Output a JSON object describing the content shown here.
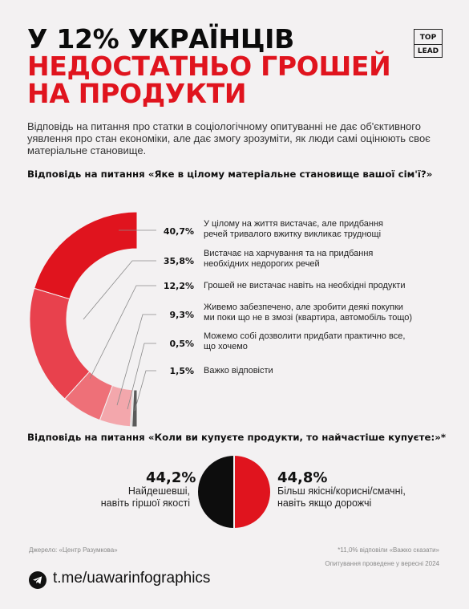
{
  "header": {
    "title_line1": "У 12% УКРАЇНЦІВ",
    "title_line2": "НЕДОСТАТНЬО ГРОШЕЙ",
    "title_line3": "НА ПРОДУКТИ",
    "logo_top": "TOP",
    "logo_bottom": "LEAD"
  },
  "intro": "Відповідь на питання про статки в соціологічному опитуванні не дає об'єктивного  уявлення про стан економіки, але дає змогу зрозуміти, як люди самі оцінюють своє матеріальне становище.",
  "colors": {
    "accent": "#e0141e",
    "series": [
      "#e0141e",
      "#e8414d",
      "#ee7078",
      "#f3a7ac",
      "#c9c9c9",
      "#5a5a5a"
    ],
    "pie": [
      "#e0141e",
      "#0d0d0d"
    ]
  },
  "chart_data": [
    {
      "type": "pie",
      "title": "Відповідь на питання «Яке в цілому матеріальне становище вашої сім'ї?»",
      "unit": "%",
      "categories": [
        "У цілому на життя вистачає, але придбання речей тривалого вжитку викликає труднощі",
        "Вистачає на харчування та на придбання необхідних недорогих речей",
        "Грошей не вистачає навіть на необхідні продукти",
        "Живемо забезпечено, але зробити деякі покупки ми поки що не в змозі (квартира, автомобіль тощо)",
        "Можемо собі дозволити придбати практично все, що хочемо",
        "Важко відповісти"
      ],
      "values": [
        40.7,
        35.8,
        12.2,
        9.3,
        0.5,
        1.5
      ],
      "value_labels": [
        "40,7%",
        "35,8%",
        "12,2%",
        "9,3%",
        "0,5%",
        "1,5%"
      ]
    },
    {
      "type": "pie",
      "title": "Відповідь на питання «Коли ви купуєте продукти, то найчастіше купуєте:»*",
      "unit": "%",
      "categories": [
        "Найдешевші, навіть гіршої якості",
        "Більш якісні/корисні/смачні, навіть якщо дорожчі"
      ],
      "values": [
        44.2,
        44.8
      ],
      "value_labels": [
        "44,2%",
        "44,8%"
      ]
    }
  ],
  "chart1_labels": [
    [
      "У цілому на життя вистачає, але придбання",
      "речей тривалого вжитку викликає труднощі"
    ],
    [
      "Вистачає на харчування та на придбання",
      "необхідних недорогих речей"
    ],
    [
      "Грошей не вистачає навіть на необхідні продукти"
    ],
    [
      "Живемо забезпечено, але зробити деякі покупки",
      "ми поки що не в змозі (квартира, автомобіль тощо)"
    ],
    [
      "Можемо собі дозволити придбати практично все,",
      "що хочемо"
    ],
    [
      "Важко відповісти"
    ]
  ],
  "chart2_labels": {
    "left": [
      "Найдешевші,",
      "навіть гіршої якості"
    ],
    "right": [
      "Більш якісні/корисні/смачні,",
      "навіть якщо дорожчі"
    ]
  },
  "footer": {
    "source": "Джерело: «Центр Разумкова»",
    "note1": "*11,0% відповіли «Важко сказати»",
    "note2": "Опитування проведене у вересні 2024",
    "telegram": "t.me/uawarinfographics"
  },
  "icons": {
    "telegram": "telegram-icon"
  }
}
